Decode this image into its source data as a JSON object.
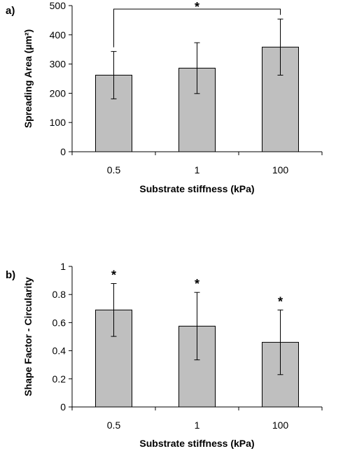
{
  "chart_data": [
    {
      "type": "bar",
      "panel_label": "a)",
      "categories": [
        "0.5",
        "1",
        "100"
      ],
      "values": [
        262,
        286,
        358
      ],
      "errors": [
        81,
        87,
        96
      ],
      "xlabel": "Substrate stiffness (kPa)",
      "ylabel": "Spreading Area (µm²)",
      "ylim": [
        0,
        500
      ],
      "yticks": [
        0,
        100,
        200,
        300,
        400,
        500
      ],
      "ytick_labels": [
        "0",
        "100",
        "200",
        "300",
        "400",
        "500"
      ],
      "significance": [
        {
          "type": "bracket",
          "from": 0,
          "to": 2,
          "label": "*"
        }
      ],
      "grid": false
    },
    {
      "type": "bar",
      "panel_label": "b)",
      "categories": [
        "0.5",
        "1",
        "100"
      ],
      "values": [
        0.69,
        0.575,
        0.46
      ],
      "errors": [
        0.188,
        0.24,
        0.23
      ],
      "xlabel": "Substrate stiffness (kPa)",
      "ylabel": "Shape Factor - Circularity",
      "ylim": [
        0,
        1
      ],
      "yticks": [
        0,
        0.2,
        0.4,
        0.6,
        0.8,
        1
      ],
      "ytick_labels": [
        "0",
        "0.2",
        "0.4",
        "0.6",
        "0.8",
        "1"
      ],
      "significance": [
        {
          "type": "star",
          "index": 0,
          "label": "*"
        },
        {
          "type": "star",
          "index": 1,
          "label": "*"
        },
        {
          "type": "star",
          "index": 2,
          "label": "*"
        }
      ],
      "grid": false
    }
  ]
}
